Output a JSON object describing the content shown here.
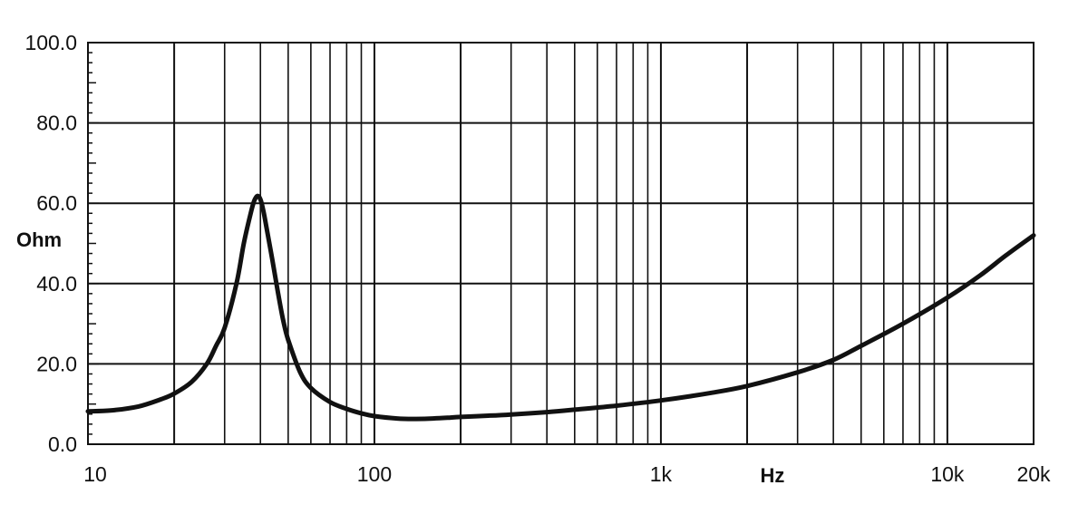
{
  "chart_data": {
    "type": "line",
    "title": "",
    "xlabel": "Hz",
    "ylabel": "Ohm",
    "x_scale": "log",
    "xlim": [
      10,
      20000
    ],
    "ylim": [
      0,
      100
    ],
    "grid": true,
    "x_ticks": [
      {
        "value": 10,
        "label": "10"
      },
      {
        "value": 100,
        "label": "100"
      },
      {
        "value": 1000,
        "label": "1k"
      },
      {
        "value": 10000,
        "label": "10k"
      },
      {
        "value": 20000,
        "label": "20k"
      }
    ],
    "y_ticks": [
      {
        "value": 0,
        "label": "0.0"
      },
      {
        "value": 20,
        "label": "20.0"
      },
      {
        "value": 40,
        "label": "40.0"
      },
      {
        "value": 60,
        "label": "60.0"
      },
      {
        "value": 80,
        "label": "80.0"
      },
      {
        "value": 100,
        "label": "100.0"
      }
    ],
    "series": [
      {
        "x": [
          10,
          12,
          15,
          18,
          20,
          23,
          26,
          28,
          30,
          33,
          35,
          37,
          38,
          39,
          40,
          41,
          42,
          44,
          46,
          48,
          50,
          55,
          60,
          70,
          80,
          90,
          100,
          120,
          140,
          160,
          180,
          200,
          250,
          300,
          400,
          500,
          700,
          1000,
          1500,
          2000,
          3000,
          4000,
          5000,
          7000,
          10000,
          13000,
          16000,
          20000
        ],
        "y": [
          8.2,
          8.4,
          9.4,
          11.2,
          12.6,
          15.5,
          20.0,
          24.5,
          29.0,
          40.0,
          50.0,
          57.5,
          60.5,
          61.8,
          61.0,
          58.0,
          54.0,
          46.0,
          38.0,
          31.0,
          26.0,
          18.0,
          14.0,
          10.5,
          8.8,
          7.7,
          7.0,
          6.4,
          6.3,
          6.4,
          6.6,
          6.8,
          7.1,
          7.4,
          8.0,
          8.6,
          9.6,
          10.9,
          12.8,
          14.5,
          17.9,
          21.0,
          24.5,
          30.0,
          36.5,
          42.0,
          47.0,
          52.0
        ]
      }
    ]
  }
}
